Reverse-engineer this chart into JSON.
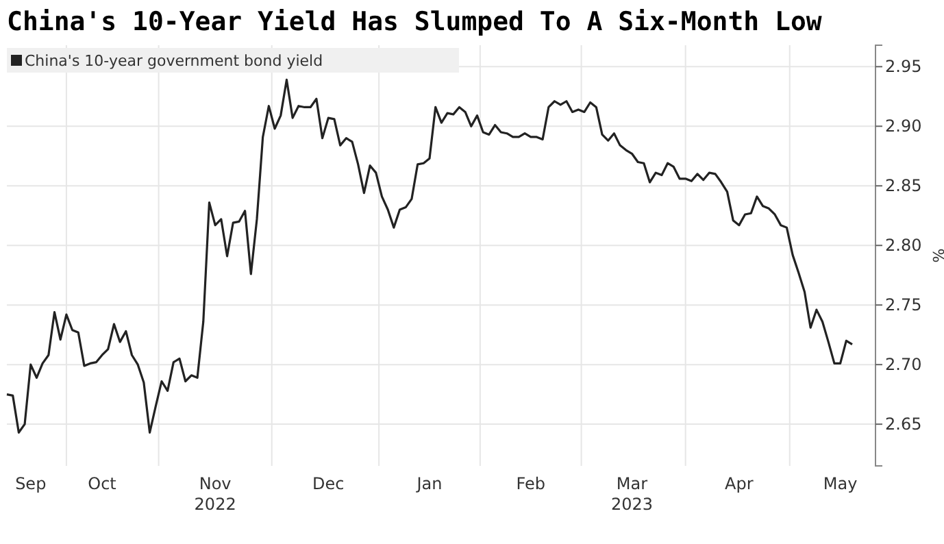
{
  "chart_data": {
    "type": "line",
    "title": "China's 10-Year Yield Has Slumped To A Six-Month Low",
    "ylabel": "%",
    "legend": "top left",
    "grid": true,
    "line_style": "solid",
    "marker": "none",
    "ylim": [
      2.615,
      2.968
    ],
    "categories": [
      null,
      null,
      null,
      null,
      "Sep",
      null,
      null,
      null,
      null,
      null,
      null,
      null,
      null,
      null,
      null,
      null,
      "Oct",
      null,
      null,
      null,
      null,
      null,
      null,
      null,
      null,
      null,
      null,
      null,
      null,
      null,
      null,
      null,
      null,
      null,
      null,
      "Nov\n2022",
      null,
      null,
      null,
      null,
      null,
      null,
      null,
      null,
      null,
      null,
      null,
      null,
      null,
      null,
      null,
      null,
      null,
      null,
      "Dec",
      null,
      null,
      null,
      null,
      null,
      null,
      null,
      null,
      null,
      null,
      null,
      null,
      null,
      null,
      null,
      null,
      "Jan",
      null,
      null,
      null,
      null,
      null,
      null,
      null,
      null,
      null,
      null,
      null,
      null,
      null,
      null,
      null,
      null,
      "Feb",
      null,
      null,
      null,
      null,
      null,
      null,
      null,
      null,
      null,
      null,
      null,
      null,
      null,
      null,
      null,
      null,
      "Mar\n2023",
      null,
      null,
      null,
      null,
      null,
      null,
      null,
      null,
      null,
      null,
      null,
      null,
      null,
      null,
      null,
      null,
      null,
      "Apr",
      null,
      null,
      null,
      null,
      null,
      null,
      null,
      null,
      null,
      null,
      null,
      null,
      null,
      null,
      null,
      null,
      "May",
      null,
      null
    ],
    "yticks": [
      2.65,
      {
        "value": 2.7,
        "label": "2.70"
      },
      2.75,
      {
        "value": 2.8,
        "label": "2.80"
      },
      2.85,
      {
        "value": 2.9,
        "label": "2.90"
      },
      2.95
    ],
    "series": [
      {
        "name": "China's 10-year government bond yield",
        "color": "#222222",
        "values": [
          2.675,
          2.674,
          2.643,
          2.65,
          2.7,
          2.689,
          2.701,
          2.708,
          2.744,
          2.721,
          2.742,
          2.729,
          2.727,
          2.699,
          2.701,
          2.702,
          2.708,
          2.713,
          2.734,
          2.719,
          2.728,
          2.708,
          2.7,
          2.685,
          2.643,
          2.665,
          2.686,
          2.678,
          2.702,
          2.705,
          2.686,
          2.691,
          2.689,
          2.736,
          2.836,
          2.817,
          2.822,
          2.791,
          2.819,
          2.82,
          2.829,
          2.776,
          2.822,
          2.891,
          2.917,
          2.898,
          2.909,
          2.939,
          2.907,
          2.917,
          2.916,
          2.916,
          2.923,
          2.89,
          2.907,
          2.906,
          2.884,
          2.89,
          2.887,
          2.868,
          2.844,
          2.867,
          2.861,
          2.841,
          2.83,
          2.815,
          2.83,
          2.832,
          2.839,
          2.868,
          2.869,
          2.873,
          2.916,
          2.903,
          2.911,
          2.91,
          2.916,
          2.912,
          2.9,
          2.909,
          2.895,
          2.893,
          2.901,
          2.895,
          2.894,
          2.891,
          2.891,
          2.894,
          2.891,
          2.891,
          2.889,
          2.916,
          2.921,
          2.918,
          2.921,
          2.912,
          2.914,
          2.912,
          2.92,
          2.916,
          2.893,
          2.888,
          2.894,
          2.884,
          2.88,
          2.877,
          2.87,
          2.869,
          2.853,
          2.861,
          2.859,
          2.869,
          2.866,
          2.856,
          2.856,
          2.854,
          2.86,
          2.855,
          2.861,
          2.86,
          2.853,
          2.845,
          2.821,
          2.817,
          2.826,
          2.827,
          2.841,
          2.833,
          2.831,
          2.826,
          2.817,
          2.815,
          2.792,
          2.777,
          2.761,
          2.731,
          2.746,
          2.736,
          2.719,
          2.701,
          2.701,
          2.72,
          2.717
        ]
      }
    ]
  }
}
